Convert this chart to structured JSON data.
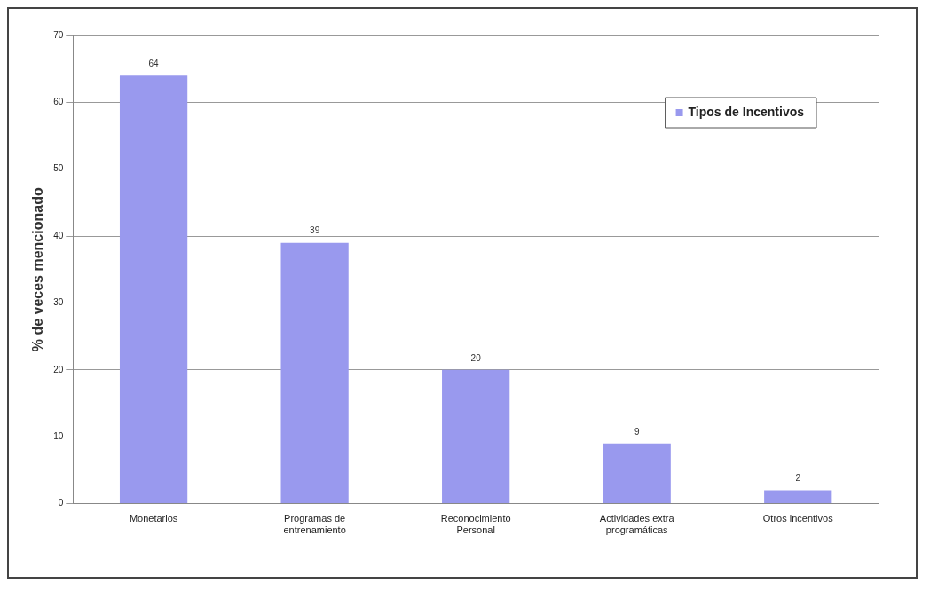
{
  "chart_data": {
    "type": "bar",
    "ylabel": "% de veces mencionado",
    "categories": [
      "Monetarios",
      "Programas de entrenamiento",
      "Reconocimiento Personal",
      "Actividades extra programáticas",
      "Otros incentivos"
    ],
    "series": [
      {
        "name": "Tipos de Incentivos",
        "color": "#9999ee",
        "values": [
          64,
          39,
          20,
          9,
          2
        ]
      }
    ],
    "ylim": [
      0,
      70
    ],
    "yticks": [
      0,
      10,
      20,
      30,
      40,
      50,
      60,
      70
    ],
    "grid": "y",
    "legend": "top right",
    "data_labels": true
  }
}
